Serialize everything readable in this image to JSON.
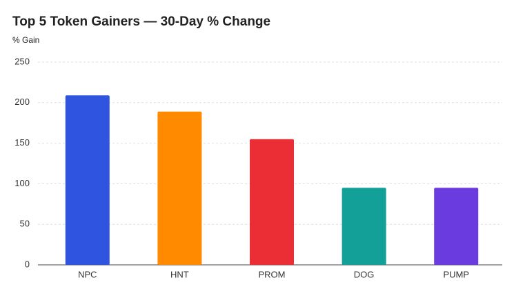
{
  "chart_data": {
    "type": "bar",
    "title": "Top 5 Token Gainers — 30-Day % Change",
    "y_label": "% Gain",
    "categories": [
      "NPC",
      "HNT",
      "PROM",
      "DOG",
      "PUMP"
    ],
    "values": [
      209,
      189,
      155,
      95,
      95
    ],
    "colors": [
      "#2f55e0",
      "#ff8a00",
      "#eb2d36",
      "#13a098",
      "#6a3bdf"
    ],
    "ylim": [
      0,
      250
    ],
    "yticks": [
      0,
      50,
      100,
      150,
      200,
      250
    ],
    "grid": true
  }
}
